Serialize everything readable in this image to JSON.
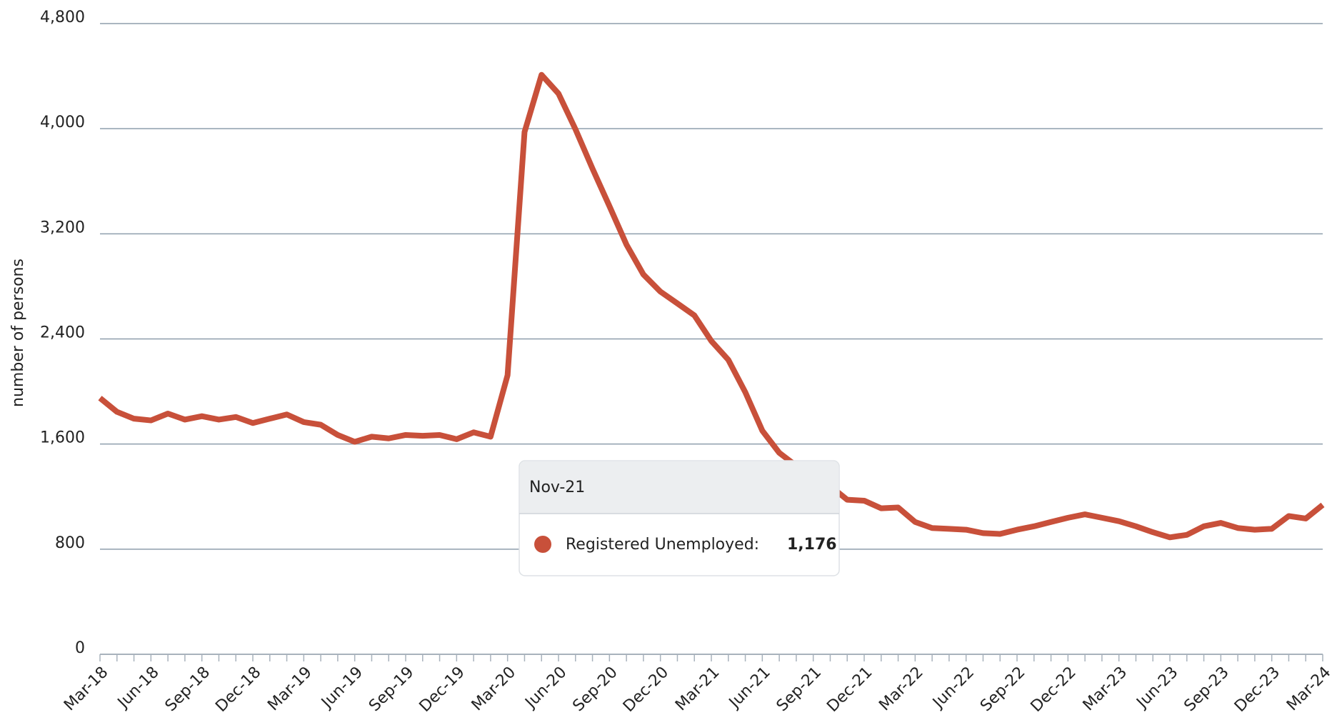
{
  "chart_data": {
    "type": "line",
    "y_label": "number of persons",
    "categories": [
      "Mar-18",
      null,
      null,
      "Jun-18",
      null,
      null,
      "Sep-18",
      null,
      null,
      "Dec-18",
      null,
      null,
      "Mar-19",
      null,
      null,
      "Jun-19",
      null,
      null,
      "Sep-19",
      null,
      null,
      "Dec-19",
      null,
      null,
      "Mar-20",
      null,
      null,
      "Jun-20",
      null,
      null,
      "Sep-20",
      null,
      null,
      "Dec-20",
      null,
      null,
      "Mar-21",
      null,
      null,
      "Jun-21",
      null,
      null,
      "Sep-21",
      null,
      null,
      "Dec-21",
      null,
      null,
      "Mar-22",
      null,
      null,
      "Jun-22",
      null,
      null,
      "Sep-22",
      null,
      null,
      "Dec-22",
      null,
      null,
      "Mar-23",
      null,
      null,
      "Jun-23",
      null,
      null,
      "Sep-23",
      null,
      null,
      "Dec-23",
      null,
      null,
      "Mar-24"
    ],
    "series": [
      {
        "name": "Registered Unemployed",
        "color": "#c8503a",
        "values": [
          1950,
          1845,
          1793,
          1780,
          1832,
          1786,
          1812,
          1786,
          1806,
          1760,
          1793,
          1825,
          1767,
          1747,
          1669,
          1617,
          1656,
          1643,
          1669,
          1663,
          1669,
          1637,
          1689,
          1656,
          2124,
          3975,
          4410,
          4267,
          3995,
          3696,
          3410,
          3118,
          2890,
          2760,
          2670,
          2579,
          2384,
          2241,
          1994,
          1702,
          1533,
          1435,
          1377,
          1280,
          1176,
          1169,
          1111,
          1117,
          1007,
          961,
          955,
          948,
          922,
          916,
          948,
          974,
          1007,
          1039,
          1065,
          1039,
          1013,
          974,
          929,
          890,
          909,
          974,
          1000,
          961,
          948,
          955,
          1052,
          1033,
          1137
        ]
      }
    ],
    "ylim": [
      0,
      4800
    ],
    "yticks": [
      0,
      800,
      {
        "value": 1600,
        "label": "1,600"
      },
      {
        "value": 2400,
        "label": "2,400"
      },
      {
        "value": 3200,
        "label": "3,200"
      },
      {
        "value": 4000,
        "label": "4,000"
      },
      {
        "value": 4800,
        "label": "4,800"
      }
    ],
    "grid": true,
    "tooltip": {
      "index": 44,
      "title": "Nov-21",
      "series_label": "Registered Unemployed:",
      "value_label": "1,176"
    }
  }
}
